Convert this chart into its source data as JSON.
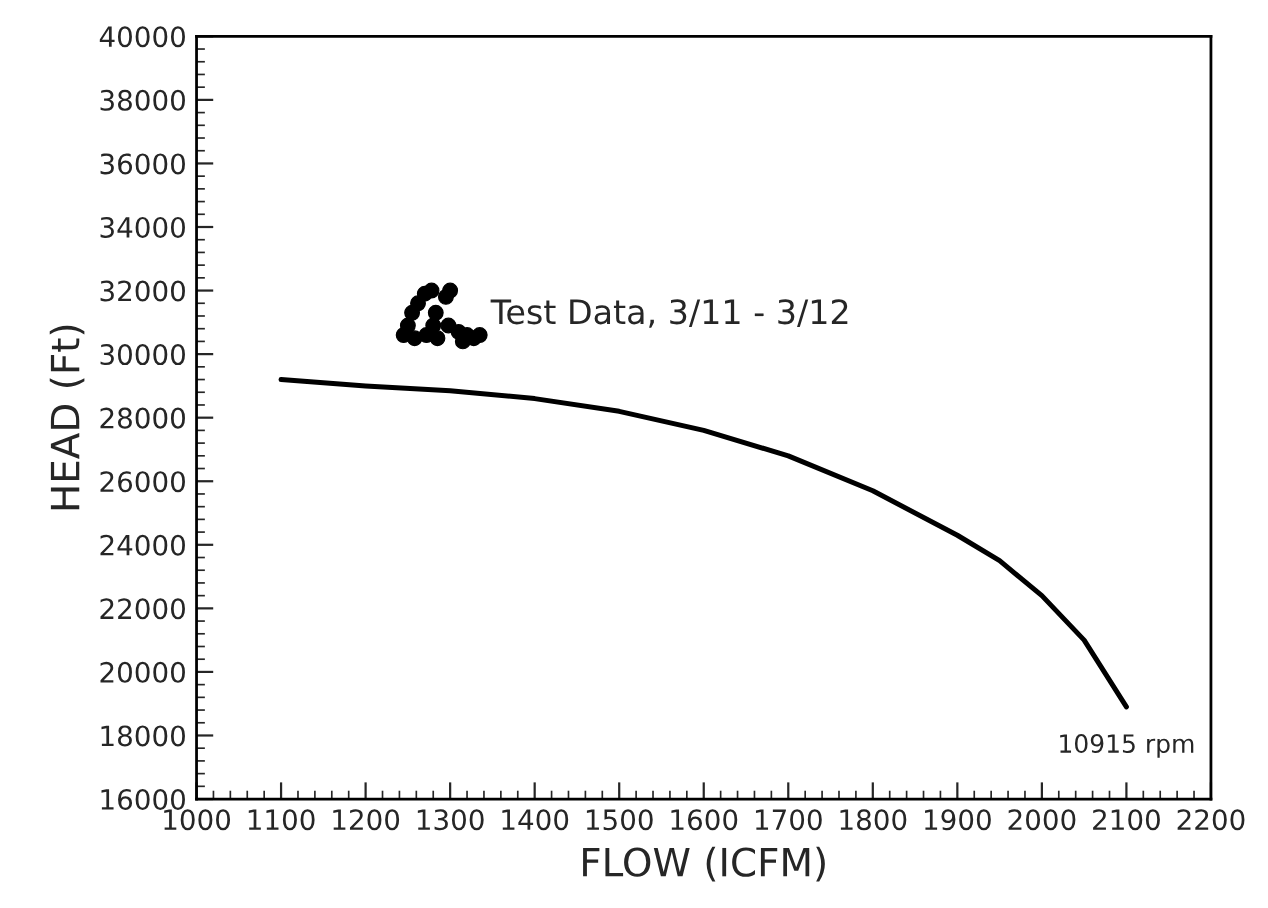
{
  "chart_data": {
    "type": "line",
    "xlabel": "FLOW (ICFM)",
    "ylabel": "HEAD (Ft)",
    "xlim": [
      1000,
      2200
    ],
    "xticks": [
      1000,
      1100,
      1200,
      1300,
      1400,
      1500,
      1600,
      1700,
      1800,
      1900,
      2000,
      2100,
      2200
    ],
    "ylim": [
      16000,
      40000
    ],
    "yticks": [
      16000,
      18000,
      20000,
      22000,
      24000,
      26000,
      28000,
      30000,
      32000,
      34000,
      36000,
      38000,
      40000
    ],
    "grid": false,
    "legend": false,
    "series": [
      {
        "color": "#000000",
        "marker": "none",
        "line_style": "solid",
        "x": [
          1100,
          1200,
          1300,
          1400,
          1500,
          1600,
          1700,
          1800,
          1900,
          1950,
          2000,
          2050,
          2100
        ],
        "values": [
          29200,
          29000,
          28850,
          28600,
          28200,
          27600,
          26800,
          25700,
          24300,
          23500,
          22400,
          21000,
          18900
        ]
      },
      {
        "type": "scatter",
        "color": "#000000",
        "marker": "circle",
        "x": [
          1245,
          1250,
          1255,
          1258,
          1262,
          1270,
          1272,
          1278,
          1280,
          1283,
          1285,
          1295,
          1298,
          1300,
          1310,
          1315,
          1320,
          1328,
          1335
        ],
        "values": [
          30600,
          30900,
          31300,
          30500,
          31600,
          31900,
          30600,
          32000,
          30900,
          31300,
          30500,
          31800,
          30900,
          32000,
          30700,
          30400,
          30600,
          30500,
          30600
        ]
      }
    ],
    "annotations": [
      "Test Data, 3/11 - 3/12",
      {
        "text": "10915 rpm",
        "x": 2100,
        "y": 18900
      }
    ]
  }
}
